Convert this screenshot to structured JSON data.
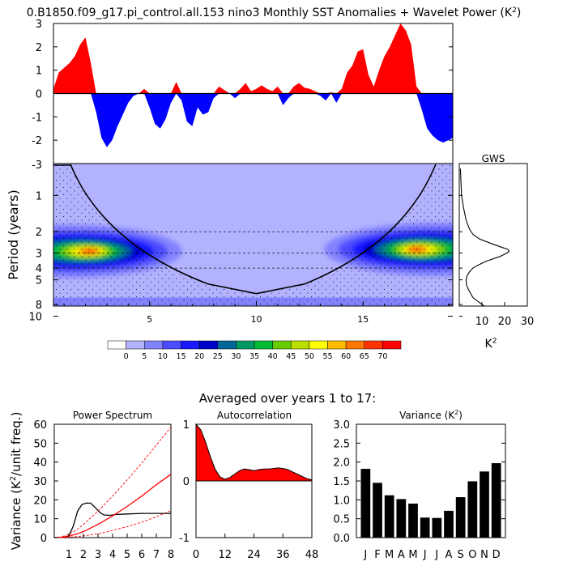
{
  "title": {
    "main": "0.B1850.f09_g17.pi_control.all.153 nino3 Monthly SST Anomalies + Wavelet Power (K",
    "sup": "2",
    "close": ")"
  },
  "subtitle": "Averaged over years 1 to 17:",
  "chart_data": [
    {
      "type": "area",
      "name": "sst-anomaly",
      "title": "0.B1850.f09_g17.pi_control.all.153 nino3 Monthly SST Anomalies + Wavelet Power (K2)",
      "xlim": [
        0.5,
        19.2
      ],
      "ylim": [
        -3,
        3
      ],
      "yticks": [
        "-3",
        "-2",
        "-1",
        "0",
        "1",
        "2",
        "3"
      ],
      "ytick_values": [
        -3,
        -2,
        -1,
        0,
        1,
        2,
        3
      ],
      "fill_positive": "#ff0000",
      "fill_negative": "#0000ff",
      "x": [
        0.5,
        0.75,
        1.0,
        1.25,
        1.5,
        1.75,
        2.0,
        2.25,
        2.5,
        2.75,
        3.0,
        3.25,
        3.5,
        3.75,
        4.0,
        4.25,
        4.5,
        4.75,
        5.0,
        5.25,
        5.5,
        5.75,
        6.0,
        6.25,
        6.5,
        6.75,
        7.0,
        7.25,
        7.5,
        7.75,
        8.0,
        8.25,
        8.5,
        8.75,
        9.0,
        9.25,
        9.5,
        9.75,
        10.0,
        10.25,
        10.5,
        10.75,
        11.0,
        11.25,
        11.5,
        11.75,
        12.0,
        12.25,
        12.5,
        12.75,
        13.0,
        13.25,
        13.5,
        13.75,
        14.0,
        14.25,
        14.5,
        14.75,
        15.0,
        15.25,
        15.5,
        15.75,
        16.0,
        16.25,
        16.5,
        16.75,
        17.0,
        17.25,
        17.5,
        17.75,
        18.0,
        18.25,
        18.5,
        18.75,
        19.0,
        19.2
      ],
      "values": [
        0.2,
        0.9,
        1.1,
        1.3,
        1.6,
        2.1,
        2.4,
        1.3,
        -0.8,
        -1.9,
        -2.3,
        -2.0,
        -1.4,
        -0.9,
        -0.4,
        -0.1,
        0.0,
        0.2,
        -0.6,
        -1.3,
        -1.5,
        -1.1,
        -0.4,
        0.5,
        -0.3,
        -1.2,
        -1.4,
        -0.6,
        -0.9,
        -0.8,
        -0.2,
        0.3,
        0.15,
        0.0,
        -0.2,
        0.2,
        0.45,
        0.1,
        0.2,
        0.35,
        0.2,
        0.1,
        0.3,
        -0.5,
        -0.2,
        0.3,
        0.45,
        0.25,
        0.2,
        0.1,
        -0.1,
        -0.3,
        0.05,
        -0.4,
        0.2,
        0.9,
        1.2,
        1.8,
        1.9,
        0.8,
        0.3,
        1.0,
        1.6,
        2.0,
        2.5,
        3.0,
        2.7,
        2.1,
        0.3,
        -0.7,
        -1.5,
        -1.8,
        -2.0,
        -2.1,
        -2.0,
        -1.9
      ]
    },
    {
      "type": "heatmap",
      "name": "wavelet-power",
      "ylabel": "Period (years)",
      "xlim": [
        0.5,
        19.2
      ],
      "xticks": [
        "5",
        "10",
        "15"
      ],
      "xtick_values": [
        5,
        10,
        15
      ],
      "yticks": [
        "1",
        "2",
        "3",
        "4",
        "5",
        "8",
        "10"
      ],
      "ytick_values": [
        1,
        2,
        3,
        4,
        5,
        8,
        10
      ],
      "dashed_periods": [
        2,
        3,
        4
      ],
      "levels": [
        "0",
        "5",
        "10",
        "15",
        "20",
        "25",
        "30",
        "35",
        "40",
        "45",
        "50",
        "55",
        "60",
        "65",
        "70"
      ],
      "colors": [
        "#ffffff",
        "#b2b2ff",
        "#8282ff",
        "#4c4cff",
        "#1919ff",
        "#0000cc",
        "#006699",
        "#009966",
        "#00bb33",
        "#66cc00",
        "#bbdd00",
        "#ffff00",
        "#ffbb00",
        "#ff7700",
        "#ff3300",
        "#ff0000"
      ],
      "background_level": 5,
      "blobs": [
        {
          "center_year": 1.2,
          "center_period": 2.9,
          "peak": 70
        },
        {
          "center_year": 18.5,
          "center_period": 2.8,
          "peak": 70
        }
      ],
      "cone_of_influence": {
        "min_year": 1.3,
        "max_year": 18.4,
        "apex_year": 10,
        "apex_period": 6.5
      }
    },
    {
      "type": "line",
      "name": "gws",
      "title": "GWS",
      "xlabel": "K2",
      "xlim": [
        0,
        30
      ],
      "xticks": [
        "10",
        "20",
        "30"
      ],
      "xtick_values": [
        10,
        20,
        30
      ],
      "periods": [
        0.6,
        1.0,
        1.3,
        1.6,
        1.9,
        2.1,
        2.3,
        2.5,
        2.7,
        2.8,
        2.9,
        3.0,
        3.2,
        3.5,
        3.8,
        4.0,
        4.3,
        4.6,
        5.0,
        5.5,
        6.0,
        7.0,
        8.0,
        8.5,
        9.0,
        10.0
      ],
      "values": [
        0.5,
        1.0,
        2.0,
        3.0,
        4.5,
        6.0,
        9.0,
        14.0,
        19.0,
        21.5,
        22.0,
        21.0,
        18.0,
        12.0,
        8.0,
        6.0,
        4.5,
        3.5,
        3.0,
        3.2,
        4.0,
        6.0,
        10.0,
        11.0,
        10.0,
        9.0
      ]
    },
    {
      "type": "line",
      "name": "power-spectrum",
      "title": "Power Spectrum",
      "ylabel": "Variance (K2/unit freq.)",
      "xlim": [
        0,
        8
      ],
      "ylim": [
        0,
        60
      ],
      "xticks": [
        "0",
        "1",
        "2",
        "3",
        "4",
        "5",
        "6",
        "7",
        "8"
      ],
      "xtick_values": [
        0,
        1,
        2,
        3,
        4,
        5,
        6,
        7,
        8
      ],
      "yticks": [
        "0",
        "10",
        "20",
        "30",
        "40",
        "50",
        "60"
      ],
      "ytick_values": [
        0,
        10,
        20,
        30,
        40,
        50,
        60
      ],
      "series": [
        {
          "x": [
            0.0,
            0.5,
            0.8,
            1.0,
            1.3,
            1.6,
            1.9,
            2.2,
            2.5,
            2.8,
            3.1,
            3.4,
            3.8,
            4.2,
            5.0,
            6.0,
            7.0,
            8.0
          ],
          "values": [
            0.0,
            0.1,
            0.3,
            1.0,
            6.0,
            14.0,
            17.5,
            18.3,
            18.2,
            16.0,
            13.5,
            12.0,
            11.8,
            12.2,
            12.5,
            12.8,
            12.8,
            12.8
          ],
          "color": "#000000",
          "style": "solid"
        },
        {
          "x": [
            0.0,
            0.5,
            1.0,
            1.5,
            2.0,
            3.0,
            4.0,
            5.0,
            6.0,
            7.0,
            8.0
          ],
          "values": [
            0.0,
            0.2,
            0.8,
            1.8,
            3.2,
            7.0,
            11.5,
            16.5,
            22.0,
            28.0,
            33.5
          ],
          "color": "#ff0000",
          "style": "solid"
        },
        {
          "x": [
            0.0,
            0.5,
            1.0,
            1.5,
            2.0,
            3.0,
            4.0,
            5.0,
            6.0,
            7.0,
            8.0
          ],
          "values": [
            0.0,
            0.4,
            1.8,
            4.0,
            7.0,
            14.0,
            22.0,
            30.5,
            39.5,
            49.0,
            58.5
          ],
          "color": "#ff0000",
          "style": "dashed"
        },
        {
          "x": [
            0.0,
            0.5,
            1.0,
            1.5,
            2.0,
            3.0,
            4.0,
            5.0,
            6.0,
            7.0,
            8.0
          ],
          "values": [
            0.0,
            0.1,
            0.2,
            0.5,
            0.9,
            2.0,
            3.8,
            5.8,
            8.2,
            11.0,
            14.3
          ],
          "color": "#ff0000",
          "style": "dashed"
        }
      ]
    },
    {
      "type": "area",
      "name": "autocorrelation",
      "title": "Autocorrelation",
      "xlim": [
        0,
        48
      ],
      "ylim": [
        -1,
        1
      ],
      "xticks": [
        "0",
        "12",
        "24",
        "36",
        "48"
      ],
      "xtick_values": [
        0,
        12,
        24,
        36,
        48
      ],
      "yticks": [
        "-1",
        "0",
        "1"
      ],
      "ytick_values": [
        -1,
        0,
        1
      ],
      "fill": "#ff0000",
      "x": [
        0,
        2,
        4,
        6,
        8,
        10,
        12,
        14,
        16,
        18,
        20,
        22,
        24,
        26,
        28,
        30,
        32,
        34,
        36,
        38,
        40,
        42,
        44,
        46,
        48
      ],
      "values": [
        1.0,
        0.9,
        0.68,
        0.42,
        0.2,
        0.07,
        0.03,
        0.06,
        0.12,
        0.18,
        0.21,
        0.2,
        0.18,
        0.2,
        0.21,
        0.21,
        0.22,
        0.23,
        0.22,
        0.2,
        0.16,
        0.12,
        0.08,
        0.04,
        0.02
      ]
    },
    {
      "type": "bar",
      "name": "monthly-variance",
      "title": "Variance (K2)",
      "categories": [
        "J",
        "F",
        "M",
        "A",
        "M",
        "J",
        "J",
        "A",
        "S",
        "O",
        "N",
        "D"
      ],
      "values": [
        1.82,
        1.45,
        1.12,
        1.02,
        0.9,
        0.53,
        0.52,
        0.71,
        1.07,
        1.49,
        1.75,
        1.97
      ],
      "ylim": [
        0,
        3
      ],
      "yticks": [
        "0.0",
        "0.5",
        "1.0",
        "1.5",
        "2.0",
        "2.5",
        "3.0"
      ],
      "ytick_values": [
        0,
        0.5,
        1,
        1.5,
        2,
        2.5,
        3
      ],
      "bar_color": "#000000"
    }
  ]
}
